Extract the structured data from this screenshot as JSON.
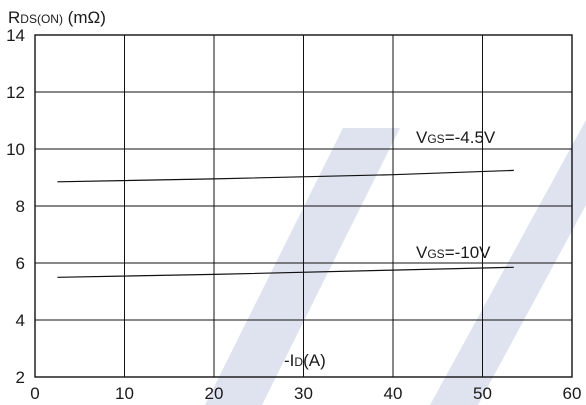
{
  "chart_data": {
    "type": "line",
    "ylabel": {
      "main": "R",
      "sub": "DS(ON)",
      "unit": " (mΩ)"
    },
    "xlabel": {
      "prefix": "-I",
      "sub": "D",
      "unit": "(A)"
    },
    "xlim": [
      0,
      60
    ],
    "ylim": [
      2,
      14
    ],
    "x_ticks": [
      0,
      10,
      20,
      30,
      40,
      50,
      60
    ],
    "y_ticks": [
      2,
      4,
      6,
      8,
      10,
      12,
      14
    ],
    "grid": true,
    "series": [
      {
        "name_main": "V",
        "name_sub": "GS",
        "name_value": "=-4.5V",
        "x": [
          2.5,
          20,
          40,
          53.5
        ],
        "y": [
          8.85,
          8.95,
          9.1,
          9.25
        ]
      },
      {
        "name_main": "V",
        "name_sub": "GS",
        "name_value": "=-10V",
        "x": [
          2.5,
          20,
          40,
          53.5
        ],
        "y": [
          5.5,
          5.6,
          5.75,
          5.85
        ]
      }
    ]
  }
}
